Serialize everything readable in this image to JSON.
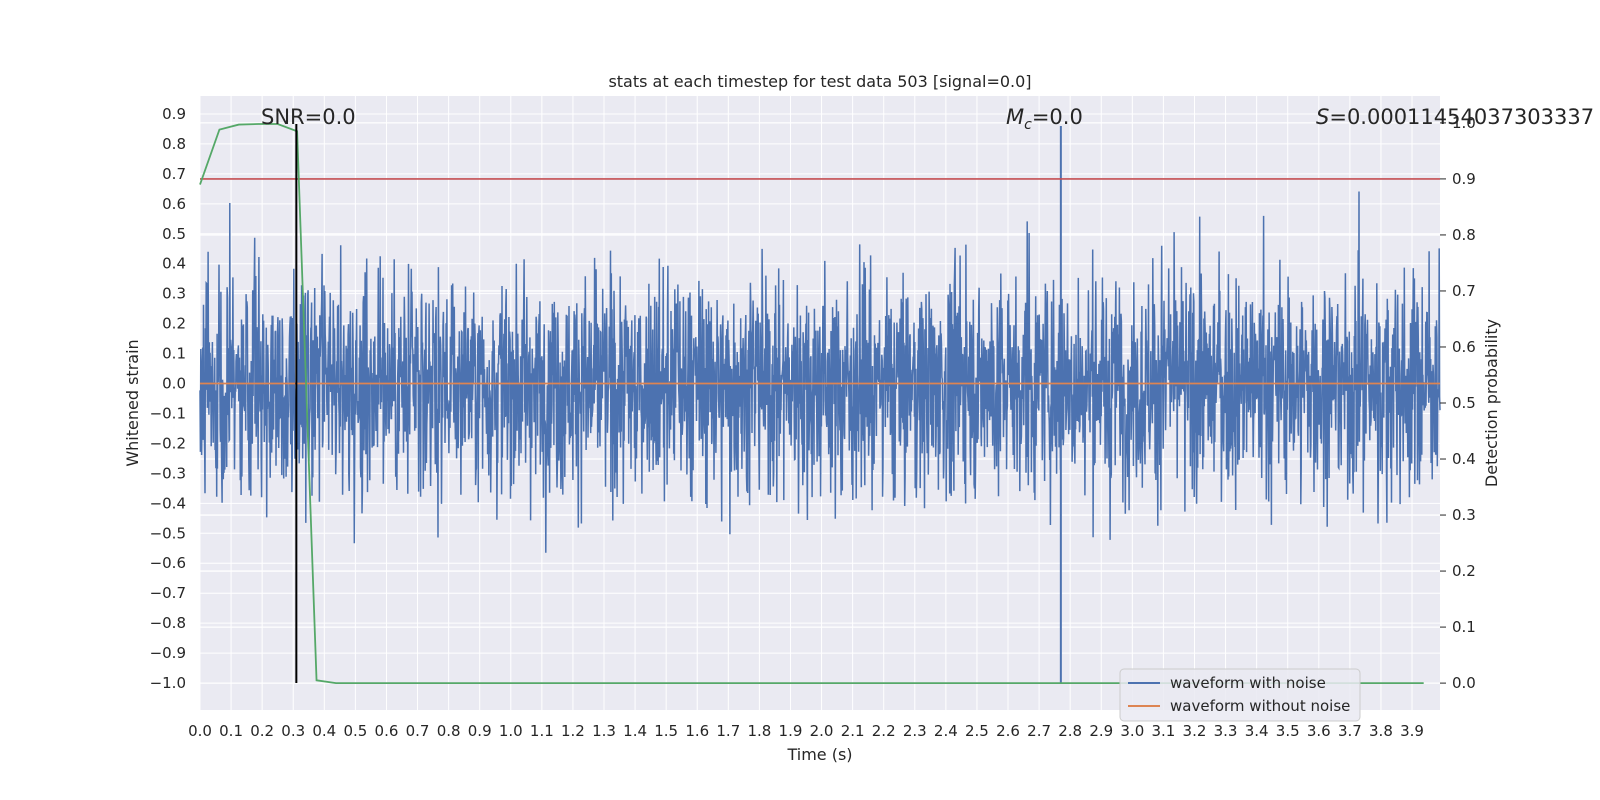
{
  "chart_data": {
    "type": "line",
    "title": "stats at each timestep for test data 503 [signal=0.0]",
    "xlabel": "Time (s)",
    "ylabel_left": "Whitened strain",
    "ylabel_right": "Detection probability",
    "xlim": [
      0.0,
      3.99
    ],
    "ylim_left": [
      -1.09,
      0.96
    ],
    "ylim_right": [
      -0.048,
      1.048
    ],
    "x_ticks": [
      "0.0",
      "0.1",
      "0.2",
      "0.3",
      "0.4",
      "0.5",
      "0.6",
      "0.7",
      "0.8",
      "0.9",
      "1.0",
      "1.1",
      "1.2",
      "1.3",
      "1.4",
      "1.5",
      "1.6",
      "1.7",
      "1.8",
      "1.9",
      "2.0",
      "2.1",
      "2.2",
      "2.3",
      "2.4",
      "2.5",
      "2.6",
      "2.7",
      "2.8",
      "2.9",
      "3.0",
      "3.1",
      "3.2",
      "3.3",
      "3.4",
      "3.5",
      "3.6",
      "3.7",
      "3.8",
      "3.9"
    ],
    "y_ticks_left": [
      "0.9",
      "0.8",
      "0.7",
      "0.6",
      "0.5",
      "0.4",
      "0.3",
      "0.2",
      "0.1",
      "0.0",
      "−0.1",
      "−0.2",
      "−0.3",
      "−0.4",
      "−0.5",
      "−0.6",
      "−0.7",
      "−0.8",
      "−0.9",
      "−1.0"
    ],
    "y_ticks_right": [
      "1.0",
      "0.9",
      "0.8",
      "0.7",
      "0.6",
      "0.5",
      "0.4",
      "0.3",
      "0.2",
      "0.1",
      "0.0"
    ],
    "annotations": {
      "snr": "SNR=0.0",
      "mc_value": "=0.0",
      "s_value": "=0.00011454037303337"
    },
    "grid": true,
    "legend_position": "lower-right",
    "series": [
      {
        "name": "waveform with noise",
        "axis": "left",
        "color": "#4c72b0",
        "description_values": "dense whitened noise, amplitude mostly within [-0.5, 0.5], peaks up to about 0.87 and down to -1.0 near t=2.77"
      },
      {
        "name": "waveform without noise",
        "axis": "left",
        "color": "#dd8452",
        "x": [
          0.0,
          3.99
        ],
        "y": [
          0.0,
          0.0
        ]
      },
      {
        "name": "",
        "axis": "right",
        "color": "#55a868",
        "x": [
          0.0,
          0.0625,
          0.125,
          0.1875,
          0.25,
          0.3125,
          0.375,
          0.4375,
          3.9375
        ],
        "y": [
          0.89,
          0.988,
          0.997,
          0.998,
          0.998,
          0.985,
          0.005,
          0.0,
          0.0
        ]
      },
      {
        "name": "",
        "axis": "right",
        "color": "#c44e52",
        "x": [
          0.0,
          3.99
        ],
        "y": [
          0.9,
          0.9
        ]
      }
    ],
    "vertical_line": {
      "x": 0.31,
      "color": "#000000"
    }
  },
  "legend": {
    "items": [
      {
        "label": "waveform with noise",
        "color": "#4c72b0"
      },
      {
        "label": "waveform without noise",
        "color": "#dd8452"
      }
    ]
  }
}
